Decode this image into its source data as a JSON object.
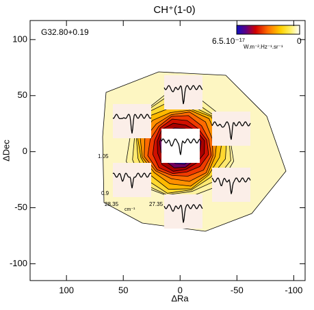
{
  "chart_data": {
    "type": "contour",
    "title": "CH⁺(1-0)",
    "source": "G32.80+0.19",
    "xlabel": "ΔRa",
    "ylabel": "ΔDec",
    "xlim": [
      132,
      -110
    ],
    "ylim": [
      -115,
      117
    ],
    "xticks": [
      100,
      50,
      0,
      -50,
      -100
    ],
    "yticks": [
      -100,
      -50,
      0,
      50,
      100
    ],
    "colorbar": {
      "max_label": "6.5.10⁻¹⁷",
      "unit": "W.m⁻².Hz⁻¹.sr⁻¹",
      "min_label": "0"
    },
    "inset_labels": {
      "ymax": "1.05",
      "ymin": "0.9",
      "xmin": "28.35",
      "xunit": "cm⁻¹",
      "xmax": "27.35"
    }
  }
}
